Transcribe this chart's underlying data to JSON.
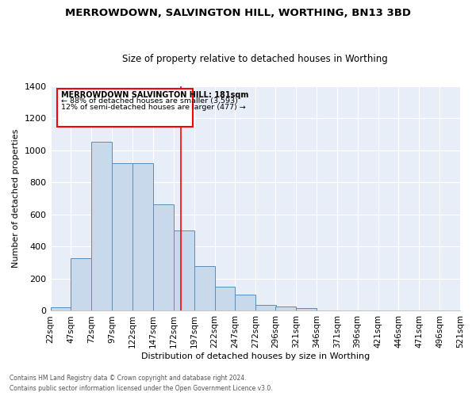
{
  "title": "MERROWDOWN, SALVINGTON HILL, WORTHING, BN13 3BD",
  "subtitle": "Size of property relative to detached houses in Worthing",
  "xlabel": "Distribution of detached houses by size in Worthing",
  "ylabel": "Number of detached properties",
  "bar_color": "#c9d9ec",
  "bar_edge_color": "#5b8db8",
  "background_color": "#e8eef8",
  "hist_values": [
    20,
    330,
    1055,
    920,
    920,
    665,
    500,
    280,
    150,
    100,
    35,
    25,
    15,
    0,
    0,
    0,
    0,
    0,
    0,
    0
  ],
  "red_line_x": 181,
  "ylim": [
    0,
    1400
  ],
  "yticks": [
    0,
    200,
    400,
    600,
    800,
    1000,
    1200,
    1400
  ],
  "bin_edges": [
    22,
    47,
    72,
    97,
    122,
    147,
    172,
    197,
    222,
    247,
    272,
    296,
    321,
    346,
    371,
    396,
    421,
    446,
    471,
    496,
    521
  ],
  "annotation_title": "MERROWDOWN SALVINGTON HILL: 181sqm",
  "annotation_line1": "← 88% of detached houses are smaller (3,593)",
  "annotation_line2": "12% of semi-detached houses are larger (477) →",
  "footer_line1": "Contains HM Land Registry data © Crown copyright and database right 2024.",
  "footer_line2": "Contains public sector information licensed under the Open Government Licence v3.0."
}
